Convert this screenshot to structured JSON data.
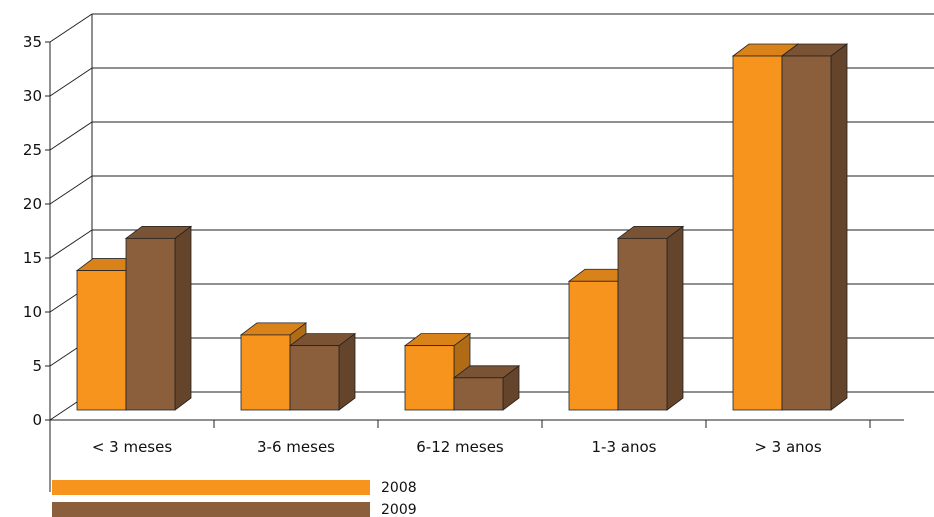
{
  "chart_data": {
    "type": "bar",
    "title": "",
    "xlabel": "",
    "ylabel": "",
    "ylim": [
      0,
      35
    ],
    "yticks": [
      0,
      5,
      10,
      15,
      20,
      25,
      30,
      35
    ],
    "grid": true,
    "legend_position": "bottom-left",
    "categories": [
      "< 3 meses",
      "3-6 meses",
      "6-12 meses",
      "1-3 anos",
      "> 3 anos"
    ],
    "series": [
      {
        "name": "2008",
        "color": "#f7941d",
        "values": [
          13,
          7,
          6,
          12,
          33
        ]
      },
      {
        "name": "2009",
        "color": "#8b5e3c",
        "values": [
          16,
          6,
          3,
          16,
          33
        ]
      }
    ]
  }
}
